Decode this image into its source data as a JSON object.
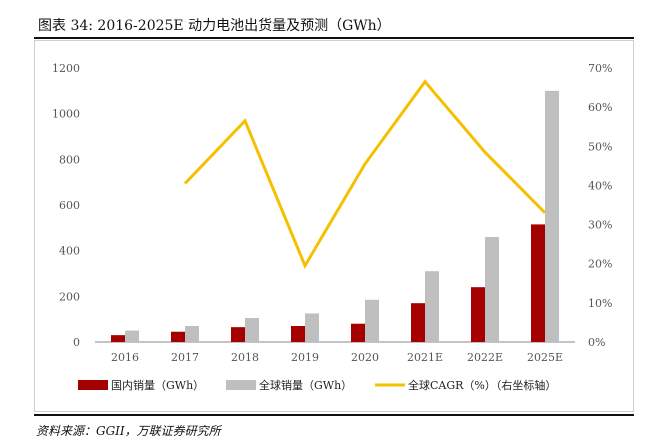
{
  "title": "图表 34: 2016-2025E 动力电池出货量及预测（GWh）",
  "source": "资料来源：GGII，万联证券研究所",
  "colors": {
    "domestic": "#a50000",
    "global": "#bfbfbf",
    "cagr": "#f5c000",
    "axis": "#888888",
    "text": "#555555"
  },
  "chart_data": {
    "type": "bar",
    "categories": [
      "2016",
      "2017",
      "2018",
      "2019",
      "2020",
      "2021E",
      "2022E",
      "2025E"
    ],
    "series": [
      {
        "name": "国内销量（GWh）",
        "type": "bar",
        "axis": "left",
        "values": [
          30,
          45,
          65,
          70,
          80,
          170,
          240,
          515
        ]
      },
      {
        "name": "全球销量（GWh）",
        "type": "bar",
        "axis": "left",
        "values": [
          50,
          70,
          105,
          125,
          185,
          310,
          460,
          1100
        ]
      },
      {
        "name": "全球CAGR（%）（右坐标轴）",
        "type": "line",
        "axis": "right",
        "values": [
          null,
          40.5,
          56.5,
          19.5,
          45.5,
          66.5,
          48.5,
          33.0
        ]
      }
    ],
    "y_left": {
      "min": 0,
      "max": 1200,
      "ticks": [
        "0",
        "200",
        "400",
        "600",
        "800",
        "1000",
        "1200"
      ]
    },
    "y_right": {
      "min": 0,
      "max": 70,
      "ticks": [
        "0%",
        "10%",
        "20%",
        "30%",
        "40%",
        "50%",
        "60%",
        "70%"
      ]
    },
    "grid": false,
    "legend": "bottom"
  }
}
